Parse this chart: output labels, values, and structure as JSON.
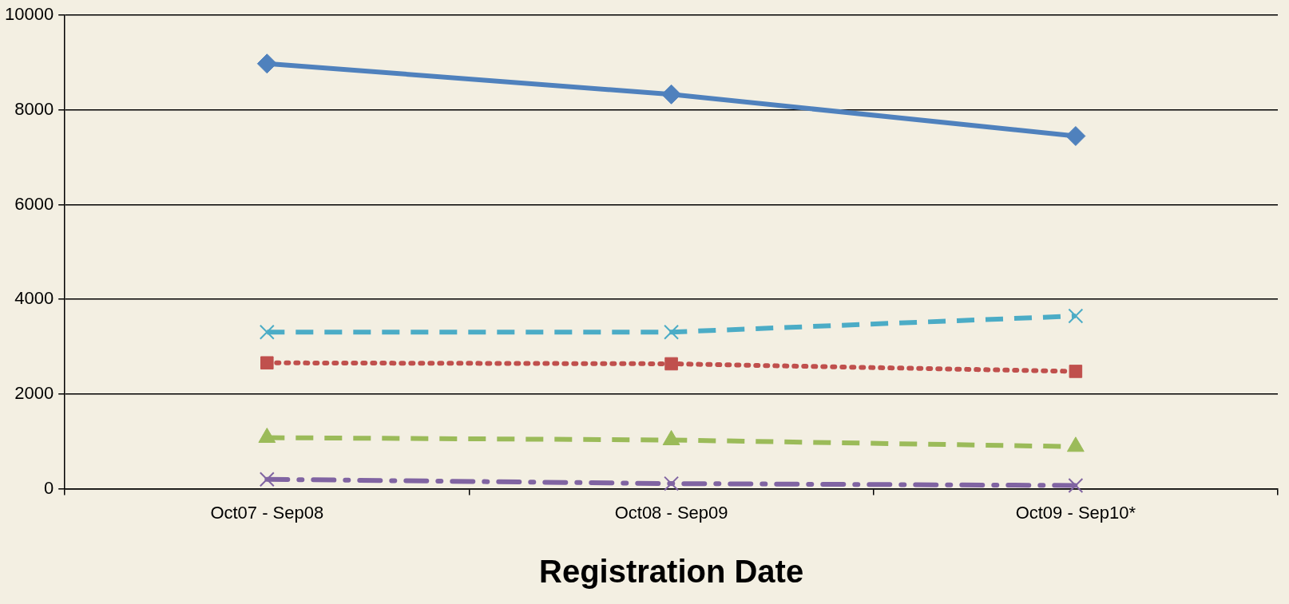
{
  "chart_data": {
    "type": "line",
    "xlabel": "Registration Date",
    "categories": [
      "Oct07 - Sep08",
      "Oct08 - Sep09",
      "Oct09 - Sep10*"
    ],
    "series": [
      {
        "color": "#4f81bd",
        "values": [
          8980,
          8330,
          7450
        ],
        "marker": "diamond",
        "line_style": "solid"
      },
      {
        "color": "#4bacc6",
        "values": [
          3310,
          3310,
          3650
        ],
        "marker": "cross",
        "line_style": "dashed"
      },
      {
        "color": "#c0504d",
        "values": [
          2660,
          2640,
          2480
        ],
        "marker": "square",
        "line_style": "dotted"
      },
      {
        "color": "#9bbb59",
        "values": [
          1080,
          1030,
          890
        ],
        "marker": "triangle",
        "line_style": "dashed"
      },
      {
        "color": "#8064a2",
        "values": [
          200,
          110,
          70
        ],
        "marker": "cross",
        "line_style": "dashdot"
      }
    ],
    "ylim": [
      0,
      10000
    ],
    "yticks": [
      0,
      2000,
      4000,
      6000,
      8000,
      10000
    ],
    "grid": "y",
    "legend": false
  }
}
